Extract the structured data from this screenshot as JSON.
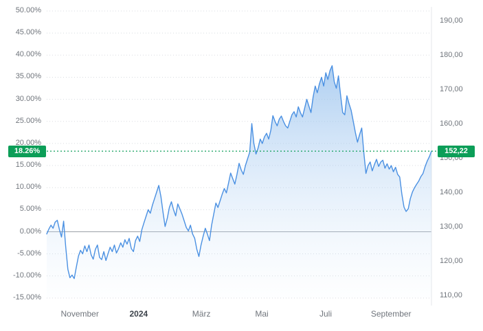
{
  "chart_data": {
    "type": "area",
    "title": "",
    "current": {
      "percent": 18.26,
      "percent_label": "18.26%",
      "price": 152.22,
      "price_label": "152,22"
    },
    "baseline_price": 128.72,
    "left_axis": {
      "unit": "%",
      "range": [
        -15,
        50
      ],
      "step": 5,
      "ticks": [
        {
          "v": 50,
          "label": "50.00%"
        },
        {
          "v": 45,
          "label": "45.00%"
        },
        {
          "v": 40,
          "label": "40.00%"
        },
        {
          "v": 35,
          "label": "35.00%"
        },
        {
          "v": 30,
          "label": "30.00%"
        },
        {
          "v": 25,
          "label": "25.00%"
        },
        {
          "v": 20,
          "label": "20.00%"
        },
        {
          "v": 15,
          "label": "15.00%"
        },
        {
          "v": 10,
          "label": "10.00%"
        },
        {
          "v": 5,
          "label": "5.00%"
        },
        {
          "v": 0,
          "label": "0.00%"
        },
        {
          "v": -5,
          "label": "-5.00%"
        },
        {
          "v": -10,
          "label": "-10.00%"
        },
        {
          "v": -15,
          "label": "-15.00%"
        }
      ]
    },
    "right_axis": {
      "unit": "price",
      "range": [
        110,
        190
      ],
      "step": 10,
      "ticks": [
        {
          "v": 190,
          "label": "190,00"
        },
        {
          "v": 180,
          "label": "180,00"
        },
        {
          "v": 170,
          "label": "170,00"
        },
        {
          "v": 160,
          "label": "160,00"
        },
        {
          "v": 150,
          "label": "150,00"
        },
        {
          "v": 140,
          "label": "140,00"
        },
        {
          "v": 130,
          "label": "130,00"
        },
        {
          "v": 120,
          "label": "120,00"
        },
        {
          "v": 110,
          "label": "110,00"
        }
      ]
    },
    "x_axis": {
      "labels": [
        {
          "t": 0.086,
          "label": "November",
          "bold": false
        },
        {
          "t": 0.239,
          "label": "2024",
          "bold": true
        },
        {
          "t": 0.402,
          "label": "März",
          "bold": false
        },
        {
          "t": 0.559,
          "label": "Mai",
          "bold": false
        },
        {
          "t": 0.725,
          "label": "Juli",
          "bold": false
        },
        {
          "t": 0.895,
          "label": "September",
          "bold": false
        }
      ]
    },
    "series": [
      {
        "name": "performance_percent",
        "values": [
          -0.5,
          0.6,
          1.5,
          0.8,
          2.2,
          2.6,
          0.5,
          -1.2,
          2.4,
          -3.5,
          -8.5,
          -10.4,
          -9.8,
          -10.6,
          -8.0,
          -5.5,
          -4.2,
          -5.0,
          -3.2,
          -4.5,
          -3.0,
          -5.2,
          -6.2,
          -4.0,
          -3.0,
          -5.8,
          -6.3,
          -4.5,
          -6.5,
          -5.0,
          -3.5,
          -4.5,
          -3.0,
          -4.8,
          -3.8,
          -2.5,
          -3.5,
          -1.8,
          -2.8,
          -1.5,
          -3.8,
          -4.5,
          -2.0,
          -1.0,
          -2.2,
          0.5,
          2.0,
          3.5,
          5.0,
          4.2,
          6.0,
          7.5,
          9.0,
          10.5,
          8.0,
          4.5,
          1.2,
          3.0,
          5.5,
          6.8,
          5.0,
          3.6,
          6.3,
          5.2,
          4.0,
          2.5,
          1.0,
          0.2,
          1.5,
          -0.5,
          -1.5,
          -4.0,
          -5.6,
          -3.0,
          -1.0,
          0.8,
          -0.5,
          -2.0,
          1.5,
          4.0,
          6.5,
          5.5,
          7.0,
          8.5,
          9.8,
          8.8,
          11.0,
          13.3,
          12.0,
          10.8,
          13.0,
          15.5,
          14.0,
          13.0,
          15.0,
          16.5,
          18.0,
          24.5,
          20.0,
          17.6,
          19.0,
          21.0,
          20.0,
          21.5,
          22.3,
          21.0,
          23.0,
          26.3,
          25.0,
          24.0,
          25.5,
          26.2,
          25.0,
          24.0,
          23.5,
          25.0,
          26.5,
          27.2,
          26.0,
          28.3,
          27.0,
          26.0,
          28.0,
          30.0,
          28.5,
          27.0,
          30.5,
          33.0,
          31.5,
          33.5,
          35.0,
          33.0,
          36.0,
          34.5,
          36.5,
          37.6,
          34.0,
          32.5,
          35.3,
          31.0,
          27.0,
          26.5,
          30.8,
          29.0,
          27.5,
          25.0,
          22.5,
          20.3,
          22.0,
          23.5,
          18.0,
          13.2,
          15.0,
          15.8,
          13.8,
          15.2,
          16.4,
          14.8,
          15.8,
          16.2,
          14.4,
          15.4,
          14.2,
          15.0,
          13.6,
          14.6,
          13.0,
          12.4,
          8.5,
          5.6,
          4.6,
          5.2,
          7.5,
          9.0,
          10.0,
          10.8,
          11.5,
          12.5,
          13.2,
          14.8,
          16.0,
          17.0,
          18.26
        ]
      }
    ],
    "layout": {
      "grid": "horizontal-dotted",
      "zero_line": true,
      "legend": "none"
    },
    "colors": {
      "line": "#4a90e2",
      "area_top": "#8fbcec",
      "area_bottom": "#d8e9fa",
      "accent_green": "#0c9e58",
      "grid": "#d8dbe0",
      "zero_line": "#9aa0a6",
      "border": "#e4e7eb",
      "axis_text": "#70757c",
      "axis_text_bold": "#3d434b"
    }
  }
}
